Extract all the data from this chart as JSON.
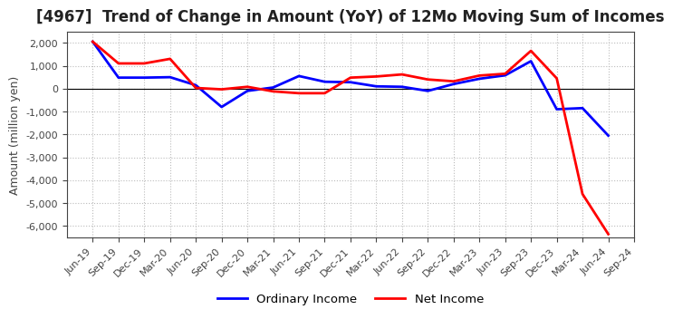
{
  "title": "[4967]  Trend of Change in Amount (YoY) of 12Mo Moving Sum of Incomes",
  "ylabel": "Amount (million yen)",
  "x_labels": [
    "Jun-19",
    "Sep-19",
    "Dec-19",
    "Mar-20",
    "Jun-20",
    "Sep-20",
    "Dec-20",
    "Mar-21",
    "Jun-21",
    "Sep-21",
    "Dec-21",
    "Mar-22",
    "Jun-22",
    "Sep-22",
    "Dec-22",
    "Mar-23",
    "Jun-23",
    "Sep-23",
    "Dec-23",
    "Mar-24",
    "Jun-24",
    "Sep-24"
  ],
  "ordinary_income": [
    2050,
    480,
    480,
    500,
    150,
    -800,
    -100,
    50,
    550,
    300,
    280,
    100,
    80,
    -100,
    200,
    430,
    580,
    1200,
    -900,
    -850,
    -2050,
    null
  ],
  "net_income": [
    2050,
    1100,
    1100,
    1300,
    30,
    -30,
    80,
    -120,
    -200,
    -200,
    480,
    530,
    620,
    400,
    320,
    570,
    650,
    1650,
    450,
    -4600,
    -6350,
    null
  ],
  "ordinary_income_color": "#0000FF",
  "net_income_color": "#FF0000",
  "ylim": [
    -6500,
    2500
  ],
  "yticks": [
    -6000,
    -5000,
    -4000,
    -3000,
    -2000,
    -1000,
    0,
    1000,
    2000
  ],
  "background_color": "#FFFFFF",
  "plot_bg_color": "#F0F0F0",
  "grid_color": "#BBBBBB",
  "legend_labels": [
    "Ordinary Income",
    "Net Income"
  ],
  "line_width": 2.0,
  "title_fontsize": 12,
  "tick_fontsize": 8,
  "ylabel_fontsize": 9
}
